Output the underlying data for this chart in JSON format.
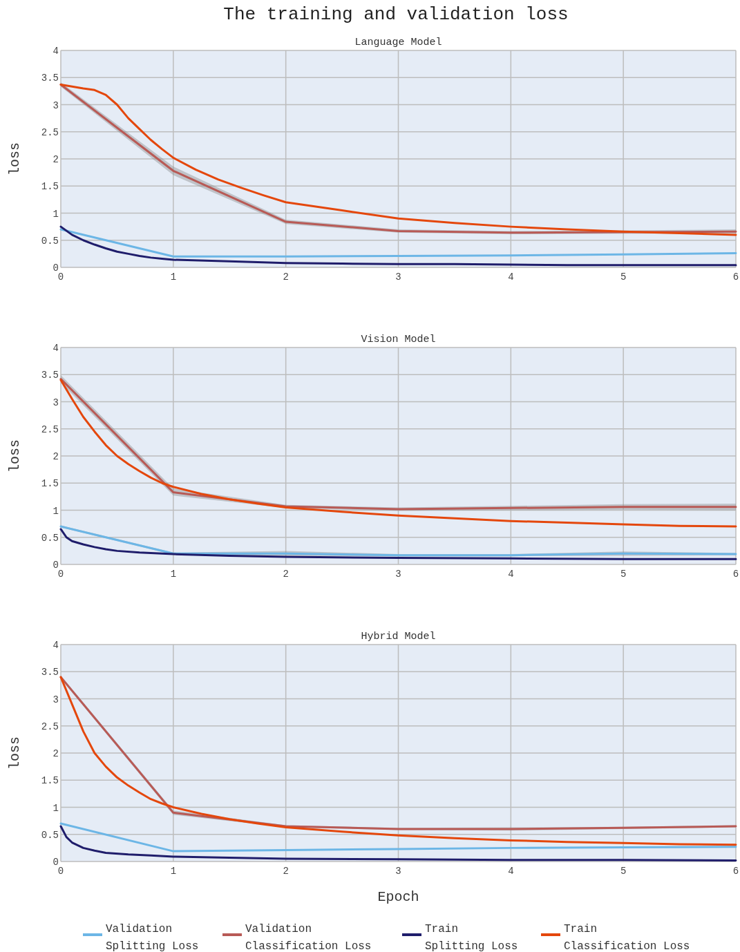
{
  "chart_data": [
    {
      "type": "line",
      "title": "The training and validation loss",
      "subtitle": "Language Model",
      "ylabel": "loss",
      "xlim": [
        0,
        6
      ],
      "xticks": [
        0,
        1,
        2,
        3,
        4,
        5,
        6
      ],
      "ylim": [
        0,
        4
      ],
      "yticks": [
        0,
        0.5,
        1,
        1.5,
        2,
        2.5,
        3,
        3.5,
        4
      ],
      "grid": true,
      "legend": "bottom",
      "series": [
        {
          "name": "Validation Splitting Loss",
          "color": "#6cb6e6",
          "x": [
            0,
            1,
            2,
            3,
            4,
            5,
            6
          ],
          "values": [
            0.7,
            0.2,
            0.2,
            0.21,
            0.22,
            0.24,
            0.26
          ]
        },
        {
          "name": "Validation Classification Loss",
          "color": "#b85a56",
          "x": [
            0,
            1,
            2,
            3,
            4,
            5,
            6
          ],
          "values": [
            3.37,
            1.78,
            0.84,
            0.67,
            0.64,
            0.65,
            0.66
          ],
          "lower": [
            3.33,
            1.7,
            0.8,
            0.64,
            0.61,
            0.62,
            0.62
          ],
          "upper": [
            3.41,
            1.86,
            0.88,
            0.7,
            0.67,
            0.68,
            0.7
          ]
        },
        {
          "name": "Train Splitting Loss",
          "color": "#1f1d6b",
          "x": [
            0,
            0.1,
            0.2,
            0.3,
            0.4,
            0.5,
            0.6,
            0.7,
            0.8,
            0.9,
            1,
            1.5,
            2,
            2.5,
            3,
            3.5,
            4,
            4.5,
            5,
            5.5,
            6
          ],
          "values": [
            0.75,
            0.6,
            0.5,
            0.42,
            0.35,
            0.29,
            0.25,
            0.21,
            0.18,
            0.16,
            0.14,
            0.11,
            0.08,
            0.07,
            0.06,
            0.06,
            0.05,
            0.04,
            0.04,
            0.04,
            0.04
          ]
        },
        {
          "name": "Train Classification Loss",
          "color": "#e4470c",
          "x": [
            0,
            0.2,
            0.3,
            0.4,
            0.5,
            0.6,
            0.7,
            0.8,
            0.9,
            1,
            1.2,
            1.4,
            1.6,
            1.8,
            2,
            2.5,
            3,
            3.5,
            4,
            4.5,
            5,
            5.5,
            6
          ],
          "values": [
            3.37,
            3.3,
            3.27,
            3.18,
            3.0,
            2.75,
            2.55,
            2.35,
            2.18,
            2.02,
            1.8,
            1.62,
            1.47,
            1.33,
            1.2,
            1.05,
            0.9,
            0.82,
            0.75,
            0.7,
            0.66,
            0.63,
            0.6
          ]
        }
      ]
    },
    {
      "type": "line",
      "subtitle": "Vision Model",
      "ylabel": "loss",
      "xlim": [
        0,
        6
      ],
      "xticks": [
        0,
        1,
        2,
        3,
        4,
        5,
        6
      ],
      "ylim": [
        0,
        4
      ],
      "yticks": [
        0,
        0.5,
        1,
        1.5,
        2,
        2.5,
        3,
        3.5,
        4
      ],
      "grid": true,
      "series": [
        {
          "color": "#6cb6e6",
          "x": [
            0,
            1,
            2,
            3,
            4,
            5,
            6
          ],
          "values": [
            0.7,
            0.2,
            0.2,
            0.17,
            0.17,
            0.2,
            0.19
          ],
          "lower": [
            0.68,
            0.18,
            0.16,
            0.15,
            0.15,
            0.16,
            0.17
          ],
          "upper": [
            0.72,
            0.22,
            0.25,
            0.19,
            0.19,
            0.24,
            0.21
          ]
        },
        {
          "color": "#b85a56",
          "x": [
            0,
            1,
            2,
            3,
            4,
            5,
            6
          ],
          "values": [
            3.42,
            1.33,
            1.07,
            1.02,
            1.04,
            1.06,
            1.06
          ],
          "lower": [
            3.35,
            1.27,
            1.04,
            0.99,
            1.0,
            1.01,
            1.0
          ],
          "upper": [
            3.49,
            1.4,
            1.1,
            1.05,
            1.08,
            1.11,
            1.12
          ]
        },
        {
          "color": "#1f1d6b",
          "x": [
            0,
            0.05,
            0.1,
            0.2,
            0.3,
            0.4,
            0.5,
            0.7,
            1,
            1.5,
            2,
            3,
            4,
            5,
            6
          ],
          "values": [
            0.65,
            0.5,
            0.43,
            0.37,
            0.32,
            0.28,
            0.25,
            0.22,
            0.19,
            0.16,
            0.14,
            0.12,
            0.11,
            0.1,
            0.1
          ]
        },
        {
          "color": "#e4470c",
          "x": [
            0,
            0.1,
            0.2,
            0.3,
            0.4,
            0.5,
            0.6,
            0.7,
            0.8,
            0.9,
            1,
            1.25,
            1.5,
            1.75,
            2,
            2.5,
            3,
            3.5,
            4,
            4.5,
            5,
            5.5,
            6
          ],
          "values": [
            3.4,
            3.05,
            2.72,
            2.45,
            2.2,
            2.0,
            1.85,
            1.72,
            1.6,
            1.5,
            1.43,
            1.3,
            1.2,
            1.12,
            1.05,
            0.97,
            0.9,
            0.85,
            0.8,
            0.77,
            0.74,
            0.71,
            0.7
          ]
        }
      ]
    },
    {
      "type": "line",
      "subtitle": "Hybrid Model",
      "xlabel": "Epoch",
      "ylabel": "loss",
      "xlim": [
        0,
        6
      ],
      "xticks": [
        0,
        1,
        2,
        3,
        4,
        5,
        6
      ],
      "ylim": [
        0,
        4
      ],
      "yticks": [
        0,
        0.5,
        1,
        1.5,
        2,
        2.5,
        3,
        3.5,
        4
      ],
      "grid": true,
      "series": [
        {
          "color": "#6cb6e6",
          "x": [
            0,
            1,
            2,
            3,
            4,
            5,
            6
          ],
          "values": [
            0.7,
            0.19,
            0.21,
            0.23,
            0.25,
            0.26,
            0.27
          ]
        },
        {
          "color": "#b85a56",
          "x": [
            0,
            1,
            2,
            3,
            4,
            5,
            6
          ],
          "values": [
            3.4,
            0.9,
            0.65,
            0.6,
            0.6,
            0.62,
            0.65
          ],
          "lower": [
            3.37,
            0.86,
            0.63,
            0.58,
            0.57,
            0.6,
            0.63
          ],
          "upper": [
            3.43,
            0.94,
            0.67,
            0.62,
            0.63,
            0.64,
            0.67
          ]
        },
        {
          "color": "#1f1d6b",
          "x": [
            0,
            0.05,
            0.1,
            0.2,
            0.3,
            0.4,
            0.6,
            0.8,
            1,
            1.5,
            2,
            3,
            4,
            5,
            6
          ],
          "values": [
            0.65,
            0.45,
            0.35,
            0.25,
            0.2,
            0.16,
            0.13,
            0.11,
            0.09,
            0.07,
            0.05,
            0.04,
            0.03,
            0.03,
            0.02
          ]
        },
        {
          "color": "#e4470c",
          "x": [
            0,
            0.1,
            0.2,
            0.3,
            0.4,
            0.5,
            0.6,
            0.7,
            0.8,
            0.9,
            1,
            1.25,
            1.5,
            1.75,
            2,
            2.5,
            3,
            3.5,
            4,
            4.5,
            5,
            5.5,
            6
          ],
          "values": [
            3.4,
            2.9,
            2.4,
            2.0,
            1.75,
            1.55,
            1.4,
            1.27,
            1.15,
            1.07,
            1.0,
            0.88,
            0.78,
            0.7,
            0.63,
            0.55,
            0.48,
            0.43,
            0.39,
            0.36,
            0.34,
            0.32,
            0.31
          ]
        }
      ]
    }
  ]
}
